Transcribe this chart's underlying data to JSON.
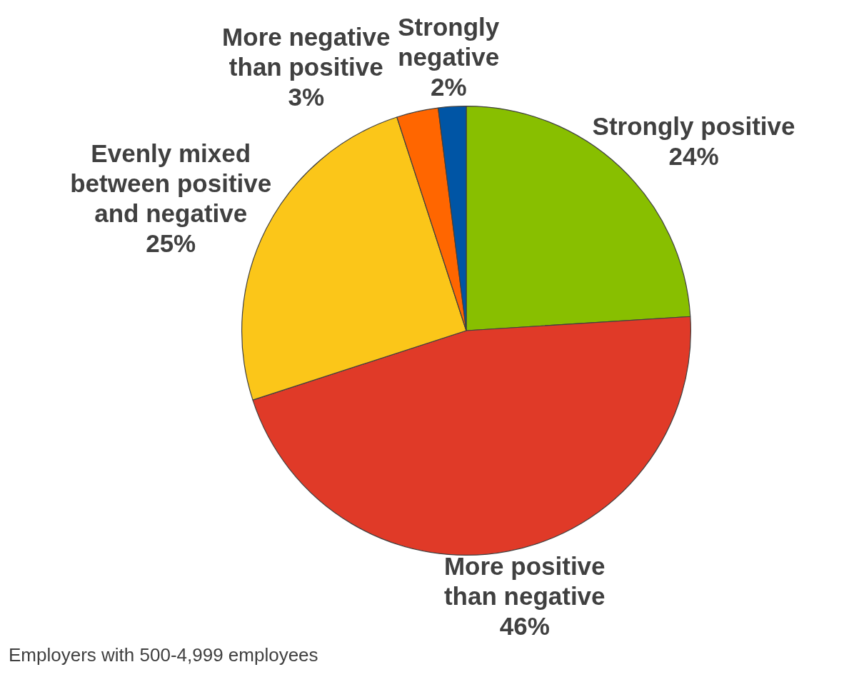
{
  "chart_data": {
    "type": "pie",
    "categories": [
      "Strongly positive",
      "More positive than negative",
      "Evenly mixed between positive and negative",
      "More negative than positive",
      "Strongly negative"
    ],
    "values": [
      24,
      46,
      25,
      3,
      2
    ],
    "value_labels": [
      "24%",
      "46%",
      "25%",
      "3%",
      "2%"
    ],
    "colors": [
      "#88bf00",
      "#e03a28",
      "#fbc619",
      "#ff6600",
      "#0055a5"
    ],
    "legend": false,
    "annotations": [
      "Employers with 500-4,999 employees"
    ]
  }
}
